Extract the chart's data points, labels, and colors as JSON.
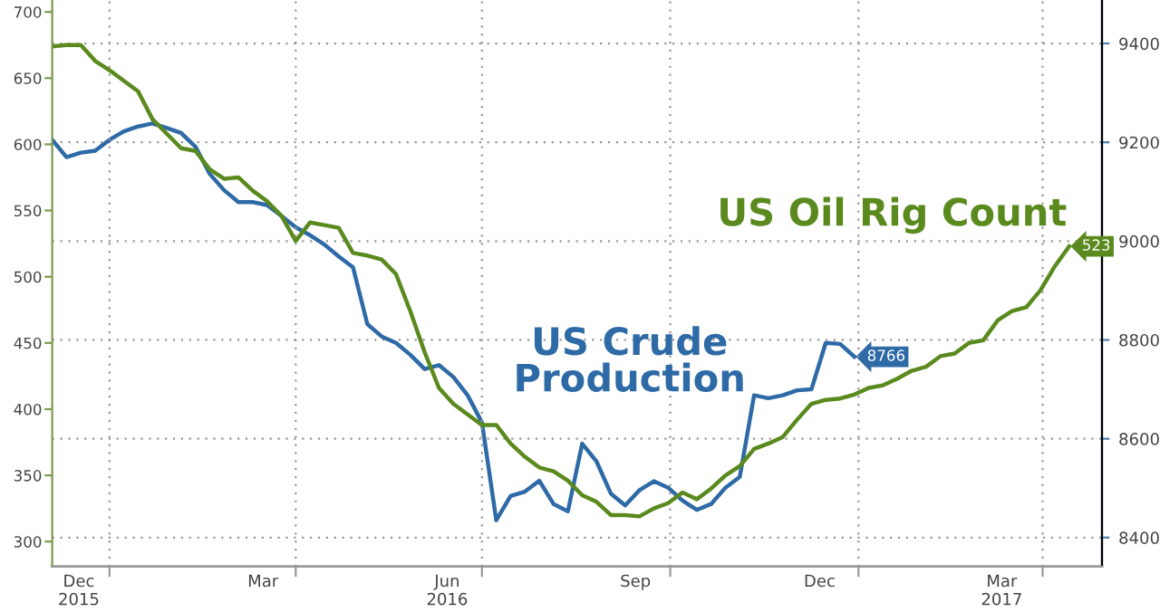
{
  "chart_data": {
    "type": "line",
    "x": [
      "2015-12-04",
      "2015-12-11",
      "2015-12-18",
      "2015-12-25",
      "2016-01-01",
      "2016-01-08",
      "2016-01-15",
      "2016-01-22",
      "2016-01-29",
      "2016-02-05",
      "2016-02-12",
      "2016-02-19",
      "2016-02-26",
      "2016-03-04",
      "2016-03-11",
      "2016-03-18",
      "2016-03-25",
      "2016-04-01",
      "2016-04-08",
      "2016-04-15",
      "2016-04-22",
      "2016-04-29",
      "2016-05-06",
      "2016-05-13",
      "2016-05-20",
      "2016-05-27",
      "2016-06-03",
      "2016-06-10",
      "2016-06-17",
      "2016-06-24",
      "2016-07-01",
      "2016-07-08",
      "2016-07-15",
      "2016-07-22",
      "2016-07-29",
      "2016-08-05",
      "2016-08-12",
      "2016-08-19",
      "2016-08-26",
      "2016-09-02",
      "2016-09-09",
      "2016-09-16",
      "2016-09-23",
      "2016-09-30",
      "2016-10-07",
      "2016-10-14",
      "2016-10-21",
      "2016-10-28",
      "2016-11-04",
      "2016-11-11",
      "2016-11-18",
      "2016-11-25",
      "2016-12-02",
      "2016-12-09",
      "2016-12-16",
      "2016-12-23",
      "2016-12-30",
      "2017-01-06",
      "2017-01-13",
      "2017-01-20",
      "2017-01-27",
      "2017-02-03",
      "2017-02-10",
      "2017-02-17",
      "2017-02-24",
      "2017-03-03",
      "2017-03-10",
      "2017-03-17",
      "2017-03-24",
      "2017-03-31",
      "2017-04-07",
      "2017-04-14"
    ],
    "series": [
      {
        "name": "US Crude Production",
        "color": "#2e6aa6",
        "axis": "y2",
        "values": [
          9205,
          9170,
          9179,
          9183,
          9205,
          9222,
          9232,
          9238,
          9229,
          9219,
          9191,
          9136,
          9103,
          9079,
          9079,
          9073,
          9051,
          9028,
          9012,
          8993,
          8969,
          8947,
          8832,
          8807,
          8794,
          8770,
          8741,
          8749,
          8725,
          8688,
          8633,
          8435,
          8484,
          8493,
          8515,
          8468,
          8453,
          8590,
          8554,
          8489,
          8465,
          8496,
          8514,
          8501,
          8475,
          8456,
          8468,
          8501,
          8523,
          8688,
          8682,
          8688,
          8698,
          8700,
          8794,
          8792,
          8766,
          null,
          null,
          null,
          null,
          null,
          null,
          null,
          null,
          null,
          null,
          null,
          null,
          null,
          null,
          null
        ],
        "value_labels": [
          null,
          null,
          null,
          null,
          null,
          null,
          null,
          null,
          null,
          null,
          null,
          null,
          null,
          null,
          null,
          null,
          null,
          null,
          null,
          null,
          null,
          null,
          null,
          null,
          null,
          null,
          null,
          null,
          null,
          null,
          null,
          null,
          null,
          null,
          null,
          null,
          null,
          null,
          null,
          null,
          null,
          null,
          null,
          null,
          null,
          null,
          null,
          null,
          null,
          null,
          null,
          null,
          null,
          null,
          null,
          null,
          "8766",
          null,
          null,
          null,
          null,
          null,
          null,
          null,
          null,
          null,
          null,
          null,
          null,
          null,
          null,
          null
        ]
      },
      {
        "name": "US Oil Rig Count",
        "color": "#5a8a1e",
        "values": [
          674,
          675,
          675,
          663,
          656,
          648,
          640,
          619,
          608,
          597,
          595,
          581,
          574,
          575,
          565,
          557,
          546,
          527,
          541,
          539,
          537,
          518,
          516,
          513,
          502,
          474,
          443,
          416,
          404,
          396,
          388,
          388,
          374,
          364,
          356,
          353,
          346,
          335,
          330,
          320,
          320,
          319,
          325,
          329,
          337,
          332,
          340,
          350,
          357,
          370,
          374,
          379,
          392,
          404,
          407,
          408,
          411,
          416,
          418,
          423,
          429,
          432,
          440,
          442,
          450,
          452,
          467,
          474,
          477,
          490,
          508,
          523
        ],
        "value_labels": [
          null,
          null,
          null,
          null,
          null,
          null,
          null,
          null,
          null,
          null,
          null,
          null,
          null,
          null,
          null,
          null,
          null,
          null,
          null,
          null,
          null,
          null,
          null,
          null,
          null,
          null,
          null,
          null,
          null,
          null,
          null,
          null,
          null,
          null,
          null,
          null,
          null,
          null,
          null,
          null,
          null,
          null,
          null,
          null,
          null,
          null,
          null,
          null,
          null,
          null,
          null,
          null,
          null,
          null,
          null,
          null,
          null,
          null,
          null,
          null,
          null,
          null,
          null,
          null,
          null,
          null,
          null,
          null,
          null,
          null,
          null,
          "523"
        ]
      }
    ],
    "xlim": [
      "2015-12-04",
      "2017-04-30"
    ],
    "xticks": [
      {
        "value": "2015-12-17",
        "label": "Dec\n2015"
      },
      {
        "value": "2016-01-01",
        "label": null
      },
      {
        "value": "2016-03-16",
        "label": "Mar"
      },
      {
        "value": "2016-04-01",
        "label": null
      },
      {
        "value": "2016-06-14",
        "label": "Jun\n2016"
      },
      {
        "value": "2016-07-01",
        "label": null
      },
      {
        "value": "2016-09-14",
        "label": "Sep"
      },
      {
        "value": "2016-10-01",
        "label": null
      },
      {
        "value": "2016-12-13",
        "label": "Dec"
      },
      {
        "value": "2017-01-01",
        "label": null
      },
      {
        "value": "2017-03-12",
        "label": "Mar\n2017"
      },
      {
        "value": "2017-04-01",
        "label": null
      }
    ],
    "ylim": [
      281,
      709
    ],
    "yticks": [
      300,
      350,
      400,
      450,
      500,
      550,
      600,
      650,
      700
    ],
    "y2lim": [
      8341,
      9488
    ],
    "y2ticks": [
      8400,
      8600,
      8800,
      9000,
      9200,
      9400
    ],
    "grid": true,
    "legend": false,
    "line_style": "solid",
    "marker": "none"
  }
}
